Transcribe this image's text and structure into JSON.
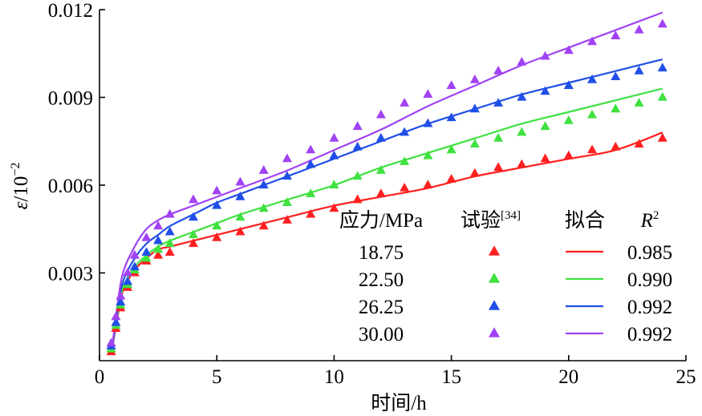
{
  "chart_data": {
    "type": "scatter",
    "xlabel": "时间/h",
    "ylabel": "ε/10⁻²",
    "ylabel_parts": {
      "symbol": "ε",
      "base": "/10",
      "exp": "−2"
    },
    "xlim": [
      0,
      25
    ],
    "ylim": [
      0,
      0.012
    ],
    "xticks": [
      0,
      5,
      10,
      15,
      20,
      25
    ],
    "xtick_labels": [
      "0",
      "5",
      "10",
      "15",
      "20",
      "25"
    ],
    "yticks": [
      0.003,
      0.006,
      0.009,
      0.012
    ],
    "ytick_labels": [
      "0.003",
      "0.006",
      "0.009",
      "0.012"
    ],
    "grid": false,
    "legend_placement": "bottom-right",
    "legend": {
      "header_stress": "应力/MPa",
      "header_test": "试验",
      "header_test_ref": "[34]",
      "header_fit": "拟合",
      "header_r2_symbol": "R",
      "header_r2_exp": "2"
    },
    "series": [
      {
        "name": "18.75",
        "r2": "0.985",
        "color": "#ff1f1f",
        "fit": [
          [
            0.5,
            0.0002
          ],
          [
            0.75,
            0.0014
          ],
          [
            1,
            0.0024
          ],
          [
            1.5,
            0.0031
          ],
          [
            2,
            0.0035
          ],
          [
            2.5,
            0.0038
          ],
          [
            3,
            0.0039
          ],
          [
            4,
            0.0041
          ],
          [
            5,
            0.0043
          ],
          [
            6,
            0.0045
          ],
          [
            8,
            0.0049
          ],
          [
            10,
            0.0053
          ],
          [
            12,
            0.0056
          ],
          [
            14,
            0.0059
          ],
          [
            16,
            0.0063
          ],
          [
            18,
            0.0066
          ],
          [
            20,
            0.0069
          ],
          [
            22,
            0.0072
          ],
          [
            24,
            0.0078
          ]
        ],
        "points": [
          [
            0.5,
            0.0003
          ],
          [
            0.7,
            0.0011
          ],
          [
            0.9,
            0.0018
          ],
          [
            1.2,
            0.0025
          ],
          [
            1.5,
            0.003
          ],
          [
            2,
            0.0034
          ],
          [
            2.5,
            0.0036
          ],
          [
            3,
            0.0037
          ],
          [
            4,
            0.004
          ],
          [
            5,
            0.0042
          ],
          [
            6,
            0.0044
          ],
          [
            7,
            0.0046
          ],
          [
            8,
            0.0048
          ],
          [
            9,
            0.005
          ],
          [
            10,
            0.0052
          ],
          [
            11,
            0.0055
          ],
          [
            12,
            0.0057
          ],
          [
            13,
            0.0059
          ],
          [
            14,
            0.006
          ],
          [
            15,
            0.0062
          ],
          [
            16,
            0.0064
          ],
          [
            17,
            0.0066
          ],
          [
            18,
            0.0067
          ],
          [
            19,
            0.0069
          ],
          [
            20,
            0.007
          ],
          [
            21,
            0.0072
          ],
          [
            22,
            0.0073
          ],
          [
            23,
            0.0074
          ],
          [
            24,
            0.0076
          ]
        ]
      },
      {
        "name": "22.50",
        "r2": "0.990",
        "color": "#3fe13f",
        "fit": [
          [
            0.5,
            0.0002
          ],
          [
            0.75,
            0.0015
          ],
          [
            1,
            0.0025
          ],
          [
            1.5,
            0.0032
          ],
          [
            2,
            0.0036
          ],
          [
            2.5,
            0.0039
          ],
          [
            3,
            0.0041
          ],
          [
            4,
            0.0044
          ],
          [
            5,
            0.0047
          ],
          [
            6,
            0.005
          ],
          [
            8,
            0.0055
          ],
          [
            10,
            0.006
          ],
          [
            12,
            0.0066
          ],
          [
            14,
            0.0071
          ],
          [
            16,
            0.0076
          ],
          [
            18,
            0.0081
          ],
          [
            20,
            0.0085
          ],
          [
            22,
            0.0089
          ],
          [
            24,
            0.0093
          ]
        ],
        "points": [
          [
            0.5,
            0.0004
          ],
          [
            0.7,
            0.0012
          ],
          [
            0.9,
            0.0019
          ],
          [
            1.2,
            0.0026
          ],
          [
            1.5,
            0.0031
          ],
          [
            2,
            0.0035
          ],
          [
            2.5,
            0.0038
          ],
          [
            3,
            0.004
          ],
          [
            4,
            0.0043
          ],
          [
            5,
            0.0046
          ],
          [
            6,
            0.0049
          ],
          [
            7,
            0.0052
          ],
          [
            8,
            0.0054
          ],
          [
            9,
            0.0057
          ],
          [
            10,
            0.006
          ],
          [
            11,
            0.0063
          ],
          [
            12,
            0.0065
          ],
          [
            13,
            0.0068
          ],
          [
            14,
            0.007
          ],
          [
            15,
            0.0072
          ],
          [
            16,
            0.0074
          ],
          [
            17,
            0.0076
          ],
          [
            18,
            0.0078
          ],
          [
            19,
            0.008
          ],
          [
            20,
            0.0082
          ],
          [
            21,
            0.0084
          ],
          [
            22,
            0.0086
          ],
          [
            23,
            0.0088
          ],
          [
            24,
            0.009
          ]
        ]
      },
      {
        "name": "26.25",
        "r2": "0.992",
        "color": "#1f4fe8",
        "fit": [
          [
            0.5,
            0.0002
          ],
          [
            0.75,
            0.0016
          ],
          [
            1,
            0.0027
          ],
          [
            1.5,
            0.0035
          ],
          [
            2,
            0.004
          ],
          [
            2.5,
            0.0043
          ],
          [
            3,
            0.0046
          ],
          [
            4,
            0.005
          ],
          [
            5,
            0.0054
          ],
          [
            6,
            0.0057
          ],
          [
            8,
            0.0063
          ],
          [
            10,
            0.0069
          ],
          [
            12,
            0.0075
          ],
          [
            14,
            0.0081
          ],
          [
            16,
            0.0086
          ],
          [
            18,
            0.0091
          ],
          [
            20,
            0.0095
          ],
          [
            22,
            0.0099
          ],
          [
            24,
            0.0103
          ]
        ],
        "points": [
          [
            0.5,
            0.0005
          ],
          [
            0.7,
            0.0013
          ],
          [
            0.9,
            0.002
          ],
          [
            1.2,
            0.0027
          ],
          [
            1.5,
            0.0032
          ],
          [
            2,
            0.0037
          ],
          [
            2.5,
            0.0041
          ],
          [
            3,
            0.0044
          ],
          [
            4,
            0.0049
          ],
          [
            5,
            0.0053
          ],
          [
            6,
            0.0056
          ],
          [
            7,
            0.006
          ],
          [
            8,
            0.0063
          ],
          [
            9,
            0.0067
          ],
          [
            10,
            0.007
          ],
          [
            11,
            0.0073
          ],
          [
            12,
            0.0076
          ],
          [
            13,
            0.0078
          ],
          [
            14,
            0.0081
          ],
          [
            15,
            0.0083
          ],
          [
            16,
            0.0086
          ],
          [
            17,
            0.0088
          ],
          [
            18,
            0.009
          ],
          [
            19,
            0.0092
          ],
          [
            20,
            0.0094
          ],
          [
            21,
            0.0096
          ],
          [
            22,
            0.0097
          ],
          [
            23,
            0.0099
          ],
          [
            24,
            0.01
          ]
        ]
      },
      {
        "name": "30.00",
        "r2": "0.992",
        "color": "#a142f4",
        "fit": [
          [
            0.5,
            0.0002
          ],
          [
            0.75,
            0.0018
          ],
          [
            1,
            0.003
          ],
          [
            1.5,
            0.0039
          ],
          [
            2,
            0.0045
          ],
          [
            2.5,
            0.0048
          ],
          [
            3,
            0.005
          ],
          [
            4,
            0.0053
          ],
          [
            5,
            0.0056
          ],
          [
            6,
            0.0059
          ],
          [
            8,
            0.0065
          ],
          [
            10,
            0.0072
          ],
          [
            12,
            0.0079
          ],
          [
            14,
            0.0087
          ],
          [
            16,
            0.0094
          ],
          [
            18,
            0.0101
          ],
          [
            20,
            0.0107
          ],
          [
            22,
            0.0113
          ],
          [
            24,
            0.0119
          ]
        ],
        "points": [
          [
            0.5,
            0.0006
          ],
          [
            0.7,
            0.0015
          ],
          [
            0.9,
            0.0022
          ],
          [
            1.2,
            0.003
          ],
          [
            1.5,
            0.0036
          ],
          [
            2,
            0.0042
          ],
          [
            2.5,
            0.0046
          ],
          [
            3,
            0.005
          ],
          [
            4,
            0.0055
          ],
          [
            5,
            0.0058
          ],
          [
            6,
            0.0061
          ],
          [
            7,
            0.0065
          ],
          [
            8,
            0.0069
          ],
          [
            9,
            0.0072
          ],
          [
            10,
            0.0076
          ],
          [
            11,
            0.008
          ],
          [
            12,
            0.0084
          ],
          [
            13,
            0.0088
          ],
          [
            14,
            0.0091
          ],
          [
            15,
            0.0094
          ],
          [
            16,
            0.0096
          ],
          [
            17,
            0.0099
          ],
          [
            18,
            0.0102
          ],
          [
            19,
            0.0104
          ],
          [
            20,
            0.0106
          ],
          [
            21,
            0.0109
          ],
          [
            22,
            0.0111
          ],
          [
            23,
            0.0113
          ],
          [
            24,
            0.0115
          ]
        ]
      }
    ]
  }
}
